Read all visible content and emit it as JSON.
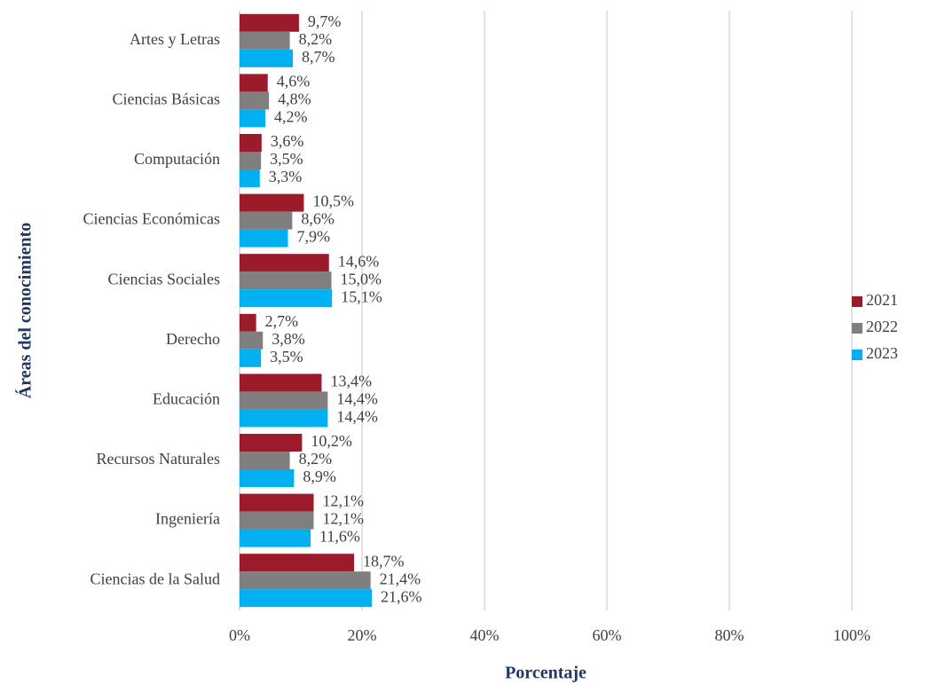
{
  "chart_data": {
    "type": "bar",
    "orientation": "horizontal",
    "x_label": "Porcentaje",
    "y_label": "Áreas del conocimiento",
    "categories": [
      "Artes y Letras",
      "Ciencias Básicas",
      "Computación",
      "Ciencias Económicas",
      "Ciencias Sociales",
      "Derecho",
      "Educación",
      "Recursos Naturales",
      "Ingeniería",
      "Ciencias de la Salud"
    ],
    "series": [
      {
        "name": "2021",
        "color": "#9b1b2a",
        "values": [
          9.7,
          4.6,
          3.6,
          10.5,
          14.6,
          2.7,
          13.4,
          10.2,
          12.1,
          18.7
        ],
        "value_labels": [
          "9,7%",
          "4,6%",
          "3,6%",
          "10,5%",
          "14,6%",
          "2,7%",
          "13,4%",
          "10,2%",
          "12,1%",
          "18,7%"
        ]
      },
      {
        "name": "2022",
        "color": "#7f7f7f",
        "values": [
          8.2,
          4.8,
          3.5,
          8.6,
          15.0,
          3.8,
          14.4,
          8.2,
          12.1,
          21.4
        ],
        "value_labels": [
          "8,2%",
          "4,8%",
          "3,5%",
          "8,6%",
          "15,0%",
          "3,8%",
          "14,4%",
          "8,2%",
          "12,1%",
          "21,4%"
        ]
      },
      {
        "name": "2023",
        "color": "#00b0f0",
        "values": [
          8.7,
          4.2,
          3.3,
          7.9,
          15.1,
          3.5,
          14.4,
          8.9,
          11.6,
          21.6
        ],
        "value_labels": [
          "8,7%",
          "4,2%",
          "3,3%",
          "7,9%",
          "15,1%",
          "3,5%",
          "14,4%",
          "8,9%",
          "11,6%",
          "21,6%"
        ]
      }
    ],
    "xlim": [
      0,
      100
    ],
    "xticks": [
      {
        "value": 0,
        "label": "0%"
      },
      {
        "value": 20,
        "label": "20%"
      },
      {
        "value": 40,
        "label": "40%"
      },
      {
        "value": 60,
        "label": "60%"
      },
      {
        "value": 80,
        "label": "80%"
      },
      {
        "value": 100,
        "label": "100%"
      }
    ],
    "grid": true,
    "legend": "right"
  }
}
